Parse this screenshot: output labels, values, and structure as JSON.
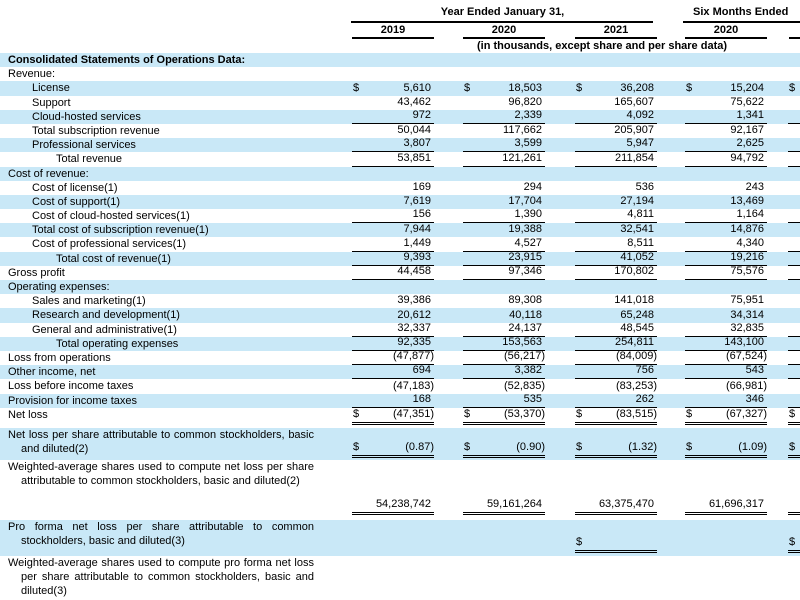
{
  "header": {
    "year_group_title": "Year Ended January 31,",
    "six_months_group_title": "Six Months Ended",
    "year_columns": [
      "2019",
      "2020",
      "2021"
    ],
    "six_months_columns": [
      "2020"
    ],
    "units_note": "(in thousands, except share and per share data)"
  },
  "colors": {
    "row_highlight": "#C9E8F7",
    "text": "#000000",
    "rules": "#000000"
  },
  "table": {
    "rows": [
      {
        "label": "Consolidated Statements of Operations Data:",
        "indent": 0,
        "bold": true,
        "shaded": true
      },
      {
        "label": "Revenue:",
        "indent": 0,
        "shaded": false
      },
      {
        "label": "License",
        "indent": 1,
        "shaded": true,
        "cells": [
          {
            "d": "$",
            "v": "5,610"
          },
          {
            "d": "$",
            "v": "18,503"
          },
          {
            "d": "$",
            "v": "36,208"
          },
          {
            "d": "$",
            "v": "15,204"
          }
        ],
        "c5": {
          "d": "$"
        }
      },
      {
        "label": "Support",
        "indent": 1,
        "shaded": false,
        "cells": [
          {
            "v": "43,462"
          },
          {
            "v": "96,820"
          },
          {
            "v": "165,607"
          },
          {
            "v": "75,622"
          }
        ]
      },
      {
        "label": "Cloud-hosted services",
        "indent": 1,
        "shaded": true,
        "rule": "single",
        "cells": [
          {
            "v": "972"
          },
          {
            "v": "2,339"
          },
          {
            "v": "4,092"
          },
          {
            "v": "1,341"
          }
        ],
        "c5": {}
      },
      {
        "label": "Total subscription revenue",
        "indent": 1,
        "shaded": false,
        "cells": [
          {
            "v": "50,044"
          },
          {
            "v": "117,662"
          },
          {
            "v": "205,907"
          },
          {
            "v": "92,167"
          }
        ]
      },
      {
        "label": "Professional services",
        "indent": 1,
        "shaded": true,
        "rule": "single",
        "cells": [
          {
            "v": "3,807"
          },
          {
            "v": "3,599"
          },
          {
            "v": "5,947"
          },
          {
            "v": "2,625"
          }
        ],
        "c5": {}
      },
      {
        "label": "Total revenue",
        "indent": 2,
        "shaded": false,
        "rule": "single",
        "cells": [
          {
            "v": "53,851"
          },
          {
            "v": "121,261"
          },
          {
            "v": "211,854"
          },
          {
            "v": "94,792"
          }
        ],
        "c5": {}
      },
      {
        "label": "Cost of revenue:",
        "indent": 0,
        "shaded": true
      },
      {
        "label": "Cost of license(1)",
        "indent": 1,
        "shaded": false,
        "cells": [
          {
            "v": "169"
          },
          {
            "v": "294"
          },
          {
            "v": "536"
          },
          {
            "v": "243"
          }
        ]
      },
      {
        "label": "Cost of support(1)",
        "indent": 1,
        "shaded": true,
        "cells": [
          {
            "v": "7,619"
          },
          {
            "v": "17,704"
          },
          {
            "v": "27,194"
          },
          {
            "v": "13,469"
          }
        ]
      },
      {
        "label": "Cost of cloud-hosted services(1)",
        "indent": 1,
        "shaded": false,
        "rule": "single",
        "cells": [
          {
            "v": "156"
          },
          {
            "v": "1,390"
          },
          {
            "v": "4,811"
          },
          {
            "v": "1,164"
          }
        ],
        "c5": {}
      },
      {
        "label": "Total cost of subscription revenue(1)",
        "indent": 1,
        "shaded": true,
        "cells": [
          {
            "v": "7,944"
          },
          {
            "v": "19,388"
          },
          {
            "v": "32,541"
          },
          {
            "v": "14,876"
          }
        ]
      },
      {
        "label": "Cost of professional services(1)",
        "indent": 1,
        "shaded": false,
        "rule": "single",
        "cells": [
          {
            "v": "1,449"
          },
          {
            "v": "4,527"
          },
          {
            "v": "8,511"
          },
          {
            "v": "4,340"
          }
        ],
        "c5": {}
      },
      {
        "label": "Total cost of revenue(1)",
        "indent": 2,
        "shaded": true,
        "rule": "single",
        "cells": [
          {
            "v": "9,393"
          },
          {
            "v": "23,915"
          },
          {
            "v": "41,052"
          },
          {
            "v": "19,216"
          }
        ],
        "c5": {}
      },
      {
        "label": "Gross profit",
        "indent": 0,
        "shaded": false,
        "rule": "single",
        "cells": [
          {
            "v": "44,458"
          },
          {
            "v": "97,346"
          },
          {
            "v": "170,802"
          },
          {
            "v": "75,576"
          }
        ],
        "c5": {}
      },
      {
        "label": "Operating expenses:",
        "indent": 0,
        "shaded": true
      },
      {
        "label": "Sales and marketing(1)",
        "indent": 1,
        "shaded": false,
        "cells": [
          {
            "v": "39,386"
          },
          {
            "v": "89,308"
          },
          {
            "v": "141,018"
          },
          {
            "v": "75,951"
          }
        ]
      },
      {
        "label": "Research and development(1)",
        "indent": 1,
        "shaded": true,
        "cells": [
          {
            "v": "20,612"
          },
          {
            "v": "40,118"
          },
          {
            "v": "65,248"
          },
          {
            "v": "34,314"
          }
        ]
      },
      {
        "label": "General and administrative(1)",
        "indent": 1,
        "shaded": false,
        "rule": "single",
        "cells": [
          {
            "v": "32,337"
          },
          {
            "v": "24,137"
          },
          {
            "v": "48,545"
          },
          {
            "v": "32,835"
          }
        ],
        "c5": {}
      },
      {
        "label": "Total operating expenses",
        "indent": 2,
        "shaded": true,
        "rule": "single",
        "cells": [
          {
            "v": "92,335"
          },
          {
            "v": "153,563"
          },
          {
            "v": "254,811"
          },
          {
            "v": "143,100"
          }
        ],
        "c5": {}
      },
      {
        "label": "Loss from operations",
        "indent": 0,
        "shaded": false,
        "rule": "single",
        "cells": [
          {
            "v": "(47,877)"
          },
          {
            "v": "(56,217)"
          },
          {
            "v": "(84,009)"
          },
          {
            "v": "(67,524)"
          }
        ],
        "c5": {}
      },
      {
        "label": "Other income, net",
        "indent": 0,
        "shaded": true,
        "rule": "single",
        "cells": [
          {
            "v": "694"
          },
          {
            "v": "3,382"
          },
          {
            "v": "756"
          },
          {
            "v": "543"
          }
        ],
        "c5": {}
      },
      {
        "label": "Loss before income taxes",
        "indent": 0,
        "shaded": false,
        "cells": [
          {
            "v": "(47,183)"
          },
          {
            "v": "(52,835)"
          },
          {
            "v": "(83,253)"
          },
          {
            "v": "(66,981)"
          }
        ]
      },
      {
        "label": "Provision for income taxes",
        "indent": 0,
        "shaded": true,
        "rule": "single",
        "cells": [
          {
            "v": "168"
          },
          {
            "v": "535"
          },
          {
            "v": "262"
          },
          {
            "v": "346"
          }
        ],
        "c5": {}
      },
      {
        "label": "Net loss",
        "indent": 0,
        "shaded": false,
        "variant": "netloss",
        "rule": "double",
        "cells": [
          {
            "d": "$",
            "v": "(47,351)"
          },
          {
            "d": "$",
            "v": "(53,370)"
          },
          {
            "d": "$",
            "v": "(83,515)"
          },
          {
            "d": "$",
            "v": "(67,327)"
          }
        ],
        "c5": {
          "d": "$"
        }
      },
      {
        "label": "Net loss per share attributable to common stockholders, basic and diluted(2)",
        "indent": 0,
        "shaded": true,
        "multiline": true,
        "variant": "persh",
        "rule": "double",
        "cells": [
          {
            "d": "$",
            "v": "(0.87)"
          },
          {
            "d": "$",
            "v": "(0.90)"
          },
          {
            "d": "$",
            "v": "(1.32)"
          },
          {
            "d": "$",
            "v": "(1.09)"
          }
        ],
        "c5": {
          "d": "$"
        }
      },
      {
        "label": "Weighted-average shares used to compute net loss per share attributable to common stockholders, basic and diluted(2)",
        "indent": 0,
        "shaded": false,
        "multiline": true,
        "variant": "wavg",
        "rule": "double",
        "cells": [
          {
            "v": "54,238,742"
          },
          {
            "v": "59,161,264"
          },
          {
            "v": "63,375,470"
          },
          {
            "v": "61,696,317"
          }
        ],
        "c5": {}
      },
      {
        "label": "Pro forma net loss per share attributable to common stockholders, basic and diluted(3)",
        "indent": 0,
        "shaded": true,
        "multiline": true,
        "variant": "proforma",
        "rule": "double",
        "cells": [
          null,
          null,
          {
            "d": "$"
          },
          null
        ],
        "c5": {
          "d": "$"
        }
      },
      {
        "label": "Weighted-average shares used to compute pro forma net loss per share attributable to common stockholders, basic and diluted(3)",
        "indent": 0,
        "shaded": false,
        "multiline": true,
        "variant": "wavgpf",
        "rule": "double",
        "cells": [
          null,
          null,
          {},
          null
        ],
        "c5": {}
      }
    ]
  }
}
